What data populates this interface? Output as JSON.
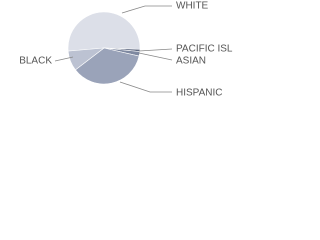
{
  "chart_data": {
    "type": "pie",
    "categories": [
      "WHITE",
      "PACIFIC ISL",
      "ASIAN",
      "HISPANIC",
      "BLACK"
    ],
    "values": [
      52,
      1,
      2,
      36,
      9
    ],
    "colors": [
      "#dcdfe8",
      "#5d6780",
      "#7e88a0",
      "#9aa3b9",
      "#bcc2d2"
    ]
  }
}
